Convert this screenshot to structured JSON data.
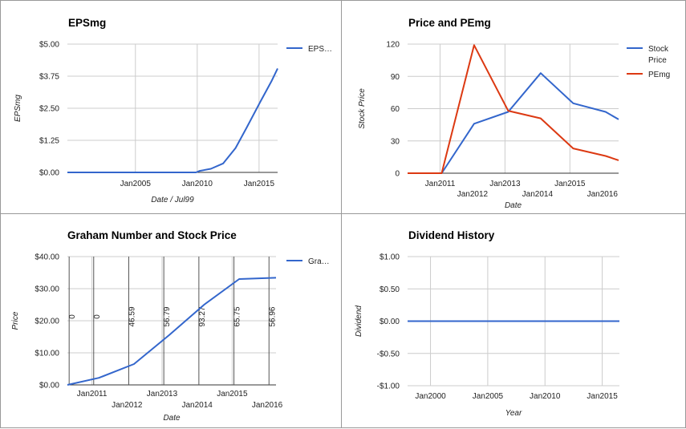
{
  "chart_data": [
    {
      "type": "line",
      "title": "EPSmg",
      "xlabel": "Date / Jul99",
      "ylabel": "EPSmg",
      "ylim": [
        0,
        5
      ],
      "xlim": [
        1999.5,
        2016.5
      ],
      "yticks": [
        {
          "v": 0,
          "label": "$0.00"
        },
        {
          "v": 1.25,
          "label": "$1.25"
        },
        {
          "v": 2.5,
          "label": "$2.50"
        },
        {
          "v": 3.75,
          "label": "$3.75"
        },
        {
          "v": 5,
          "label": "$5.00"
        }
      ],
      "xticks": [
        {
          "v": 2005,
          "label": "Jan2005",
          "row": 0
        },
        {
          "v": 2010,
          "label": "Jan2010",
          "row": 0
        },
        {
          "v": 2015,
          "label": "Jan2015",
          "row": 0
        }
      ],
      "vgrid": [
        2005,
        2010,
        2015
      ],
      "legend_position": "right",
      "series": [
        {
          "name": "EPS…",
          "color": "#3366cc",
          "x": [
            1999.5,
            2009.9,
            2010.2,
            2011.1,
            2012.1,
            2013.1,
            2014.0,
            2015.1,
            2016.0,
            2016.5
          ],
          "y": [
            0,
            0,
            0.06,
            0.14,
            0.35,
            0.95,
            1.75,
            2.75,
            3.55,
            4.05
          ]
        }
      ]
    },
    {
      "type": "line",
      "title": "Price and PEmg",
      "xlabel": "Date",
      "ylabel": "Stock Price",
      "ylim": [
        0,
        120
      ],
      "xlim": [
        2010,
        2016.5
      ],
      "yticks": [
        {
          "v": 0,
          "label": "0"
        },
        {
          "v": 30,
          "label": "30"
        },
        {
          "v": 60,
          "label": "60"
        },
        {
          "v": 90,
          "label": "90"
        },
        {
          "v": 120,
          "label": "120"
        }
      ],
      "xticks": [
        {
          "v": 2011,
          "label": "Jan2011",
          "row": 0
        },
        {
          "v": 2012,
          "label": "Jan2012",
          "row": 1
        },
        {
          "v": 2013,
          "label": "Jan2013",
          "row": 0
        },
        {
          "v": 2014,
          "label": "Jan2014",
          "row": 1
        },
        {
          "v": 2015,
          "label": "Jan2015",
          "row": 0
        },
        {
          "v": 2016,
          "label": "Jan2016",
          "row": 1
        }
      ],
      "vgrid": [
        2011,
        2013,
        2015
      ],
      "legend_position": "right",
      "series": [
        {
          "name": "Stock Price",
          "color": "#3366cc",
          "x": [
            2010,
            2011.05,
            2012.05,
            2013.1,
            2014.1,
            2015.1,
            2016.1,
            2016.5
          ],
          "y": [
            0,
            0,
            46,
            57,
            93,
            65,
            57,
            50
          ]
        },
        {
          "name": "PEmg",
          "color": "#dc3912",
          "x": [
            2010,
            2011.05,
            2012.05,
            2013.1,
            2014.1,
            2015.1,
            2016.1,
            2016.5
          ],
          "y": [
            0,
            0,
            119,
            58,
            51,
            23,
            16,
            12
          ]
        }
      ]
    },
    {
      "type": "line",
      "title": "Graham Number and Stock Price",
      "xlabel": "Date",
      "ylabel": "Price",
      "ylim": [
        0,
        40
      ],
      "xlim": [
        2010.3,
        2016.25
      ],
      "yticks": [
        {
          "v": 0,
          "label": "$0.00"
        },
        {
          "v": 10,
          "label": "$10.00"
        },
        {
          "v": 20,
          "label": "$20.00"
        },
        {
          "v": 30,
          "label": "$30.00"
        },
        {
          "v": 40,
          "label": "$40.00"
        }
      ],
      "xticks": [
        {
          "v": 2011,
          "label": "Jan2011",
          "row": 0
        },
        {
          "v": 2012,
          "label": "Jan2012",
          "row": 1
        },
        {
          "v": 2013,
          "label": "Jan2013",
          "row": 0
        },
        {
          "v": 2014,
          "label": "Jan2014",
          "row": 1
        },
        {
          "v": 2015,
          "label": "Jan2015",
          "row": 0
        },
        {
          "v": 2016,
          "label": "Jan2016",
          "row": 1
        }
      ],
      "vgrid": [
        2011,
        2013,
        2015
      ],
      "legend_position": "right",
      "series": [
        {
          "name": "Gra…",
          "color": "#3366cc",
          "x": [
            2010.3,
            2011.2,
            2012.2,
            2013.2,
            2014.2,
            2015.2,
            2016.25
          ],
          "y": [
            0,
            2.2,
            6.5,
            15.5,
            25,
            33,
            33.4
          ]
        }
      ],
      "annotations": [
        {
          "x": 2011.05,
          "label": "0"
        },
        {
          "x": 2012.05,
          "label": "46.59"
        },
        {
          "x": 2013.05,
          "label": "56.79"
        },
        {
          "x": 2014.05,
          "label": "93.27"
        },
        {
          "x": 2015.05,
          "label": "65.75"
        },
        {
          "x": 2016.05,
          "label": "56.96"
        }
      ],
      "annotations_extra": [
        {
          "x": 2010.35,
          "label": "0"
        }
      ]
    },
    {
      "type": "line",
      "title": "Dividend History",
      "xlabel": "Year",
      "ylabel": "Dividend",
      "ylim": [
        -1,
        1
      ],
      "xlim": [
        1998,
        2016.5
      ],
      "yticks": [
        {
          "v": -1,
          "label": "-$1.00"
        },
        {
          "v": -0.5,
          "label": "-$0.50"
        },
        {
          "v": 0,
          "label": "$0.00"
        },
        {
          "v": 0.5,
          "label": "$0.50"
        },
        {
          "v": 1,
          "label": "$1.00"
        }
      ],
      "xticks": [
        {
          "v": 2000,
          "label": "Jan2000",
          "row": 0
        },
        {
          "v": 2005,
          "label": "Jan2005",
          "row": 0
        },
        {
          "v": 2010,
          "label": "Jan2010",
          "row": 0
        },
        {
          "v": 2015,
          "label": "Jan2015",
          "row": 0
        }
      ],
      "vgrid": [
        2000,
        2005,
        2010,
        2015
      ],
      "legend_position": "none",
      "series": [
        {
          "name": "",
          "color": "#3366cc",
          "x": [
            1998,
            2016.5
          ],
          "y": [
            0,
            0
          ]
        }
      ]
    }
  ]
}
